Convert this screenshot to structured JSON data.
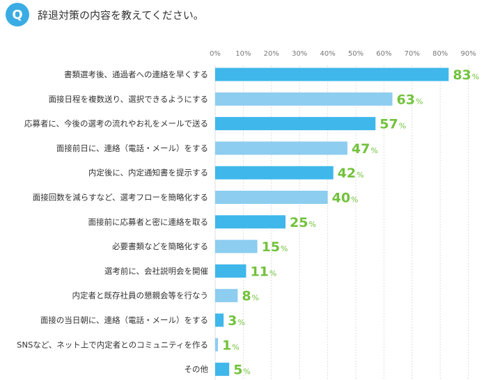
{
  "header": {
    "badge": "Q",
    "question": "辞退対策の内容を教えてください。"
  },
  "colors": {
    "accent": "#3aace3",
    "bar_dark": "#3fb7ea",
    "bar_light": "#8ccdf0",
    "value": "#72c23c",
    "grid": "#dcdcdc"
  },
  "chart_data": {
    "type": "bar",
    "orientation": "horizontal",
    "title": "",
    "xlabel": "",
    "ylabel": "",
    "xlim": [
      0,
      90
    ],
    "ticks": [
      "0%",
      "10%",
      "20%",
      "30%",
      "40%",
      "50%",
      "60%",
      "70%",
      "80%",
      "90%"
    ],
    "grid": true,
    "value_unit": "%",
    "categories": [
      "書類選考後、通過者への連絡を早くする",
      "面接日程を複数送り、選択できるようにする",
      "応募者に、今後の選考の流れやお礼をメールで送る",
      "面接前日に、連絡（電話・メール）をする",
      "内定後に、内定通知書を提示する",
      "面接回数を減らすなど、選考フローを簡略化する",
      "面接前に応募者と密に連絡を取る",
      "必要書類などを簡略化する",
      "選考前に、会社説明会を開催",
      "内定者と既存社員の懇親会等を行なう",
      "面接の当日朝に、連絡（電話・メール）をする",
      "SNSなど、ネット上で内定者とのコミュニティを作る",
      "その他"
    ],
    "values": [
      83,
      63,
      57,
      47,
      42,
      40,
      25,
      15,
      11,
      8,
      3,
      1,
      5
    ]
  }
}
